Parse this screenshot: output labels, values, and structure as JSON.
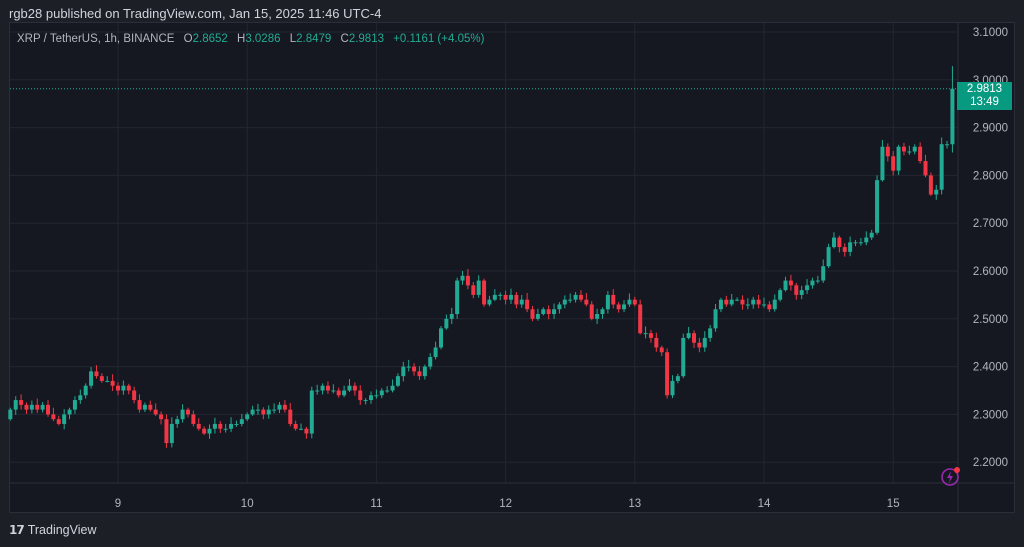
{
  "header": {
    "published": "rgb28 published on TradingView.com, Jan 15, 2025 11:46 UTC-4"
  },
  "legend": {
    "symbol": "XRP / TetherUS, 1h, BINANCE",
    "o_label": "O",
    "o": "2.8652",
    "h_label": "H",
    "h": "3.0286",
    "l_label": "L",
    "l": "2.8479",
    "c_label": "C",
    "c": "2.9813",
    "change": "+0.1161 (+4.05%)"
  },
  "price_label": {
    "price": "2.9813",
    "countdown": "13:49"
  },
  "footer": {
    "brand": "TradingView",
    "logo_mark": "TV"
  },
  "colors": {
    "up": "#22ab94",
    "down": "#f23645",
    "grid": "#232631"
  },
  "chart_data": {
    "type": "candlestick",
    "interval": "1h",
    "ylim": [
      2.15,
      3.12
    ],
    "y_ticks": [
      "2.2000",
      "2.3000",
      "2.4000",
      "2.5000",
      "2.6000",
      "2.7000",
      "2.8000",
      "2.9000",
      "3.0000",
      "3.1000"
    ],
    "x_ticks": [
      "9",
      "10",
      "11",
      "12",
      "13",
      "14",
      "15"
    ],
    "start_hour_offset_before_first_tick": 20,
    "last_candle": {
      "open": 2.8652,
      "high": 3.0286,
      "low": 2.8479,
      "close": 2.9813
    },
    "first_open": 2.29,
    "closes": [
      2.31,
      2.33,
      2.32,
      2.31,
      2.32,
      2.31,
      2.32,
      2.3,
      2.29,
      2.28,
      2.3,
      2.31,
      2.33,
      2.34,
      2.36,
      2.39,
      2.38,
      2.37,
      2.37,
      2.36,
      2.35,
      2.36,
      2.35,
      2.33,
      2.31,
      2.32,
      2.31,
      2.3,
      2.29,
      2.24,
      2.28,
      2.29,
      2.31,
      2.3,
      2.28,
      2.27,
      2.26,
      2.27,
      2.28,
      2.27,
      2.27,
      2.28,
      2.28,
      2.29,
      2.3,
      2.31,
      2.31,
      2.3,
      2.31,
      2.31,
      2.32,
      2.31,
      2.28,
      2.27,
      2.27,
      2.26,
      2.35,
      2.35,
      2.36,
      2.35,
      2.35,
      2.34,
      2.35,
      2.36,
      2.35,
      2.33,
      2.33,
      2.34,
      2.34,
      2.35,
      2.35,
      2.36,
      2.38,
      2.4,
      2.4,
      2.39,
      2.38,
      2.4,
      2.42,
      2.44,
      2.48,
      2.5,
      2.51,
      2.58,
      2.59,
      2.57,
      2.55,
      2.58,
      2.53,
      2.54,
      2.55,
      2.55,
      2.54,
      2.55,
      2.53,
      2.54,
      2.52,
      2.5,
      2.51,
      2.52,
      2.51,
      2.52,
      2.53,
      2.54,
      2.54,
      2.55,
      2.54,
      2.53,
      2.5,
      2.51,
      2.52,
      2.55,
      2.53,
      2.52,
      2.53,
      2.54,
      2.53,
      2.47,
      2.47,
      2.46,
      2.44,
      2.43,
      2.34,
      2.37,
      2.38,
      2.46,
      2.47,
      2.45,
      2.44,
      2.46,
      2.48,
      2.52,
      2.54,
      2.53,
      2.54,
      2.54,
      2.53,
      2.53,
      2.54,
      2.53,
      2.53,
      2.52,
      2.54,
      2.56,
      2.58,
      2.57,
      2.55,
      2.56,
      2.57,
      2.58,
      2.58,
      2.61,
      2.65,
      2.67,
      2.65,
      2.64,
      2.66,
      2.66,
      2.66,
      2.67,
      2.68,
      2.79,
      2.86,
      2.84,
      2.81,
      2.86,
      2.85,
      2.85,
      2.86,
      2.83,
      2.8,
      2.76,
      2.77,
      2.8652,
      2.8652,
      2.9813
    ]
  }
}
